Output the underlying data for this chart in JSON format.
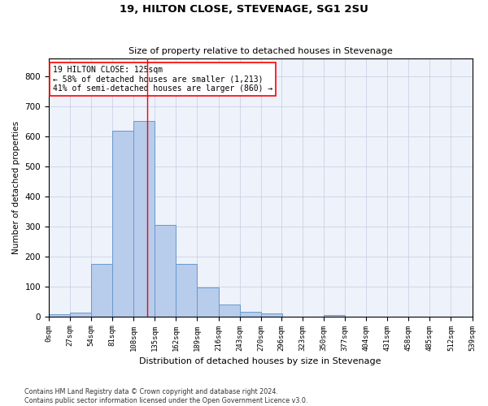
{
  "title": "19, HILTON CLOSE, STEVENAGE, SG1 2SU",
  "subtitle": "Size of property relative to detached houses in Stevenage",
  "xlabel": "Distribution of detached houses by size in Stevenage",
  "ylabel": "Number of detached properties",
  "bar_color": "#b8cceb",
  "bar_edge_color": "#6699cc",
  "bin_edges": [
    0,
    27,
    54,
    81,
    108,
    135,
    162,
    189,
    216,
    243,
    270,
    296,
    323,
    350,
    377,
    404,
    431,
    458,
    485,
    512,
    539
  ],
  "bar_heights": [
    7,
    13,
    175,
    618,
    652,
    305,
    175,
    97,
    40,
    15,
    10,
    0,
    0,
    5,
    0,
    0,
    0,
    0,
    0,
    0
  ],
  "tick_labels": [
    "0sqm",
    "27sqm",
    "54sqm",
    "81sqm",
    "108sqm",
    "135sqm",
    "162sqm",
    "189sqm",
    "216sqm",
    "243sqm",
    "270sqm",
    "296sqm",
    "323sqm",
    "350sqm",
    "377sqm",
    "404sqm",
    "431sqm",
    "458sqm",
    "485sqm",
    "512sqm",
    "539sqm"
  ],
  "ylim": [
    0,
    860
  ],
  "yticks": [
    0,
    100,
    200,
    300,
    400,
    500,
    600,
    700,
    800
  ],
  "red_line_x": 125,
  "annotation_text_line1": "19 HILTON CLOSE: 125sqm",
  "annotation_text_line2": "← 58% of detached houses are smaller (1,213)",
  "annotation_text_line3": "41% of semi-detached houses are larger (860) →",
  "footer_line1": "Contains HM Land Registry data © Crown copyright and database right 2024.",
  "footer_line2": "Contains public sector information licensed under the Open Government Licence v3.0.",
  "background_color": "#eef2fb",
  "grid_color": "#c5cce0"
}
